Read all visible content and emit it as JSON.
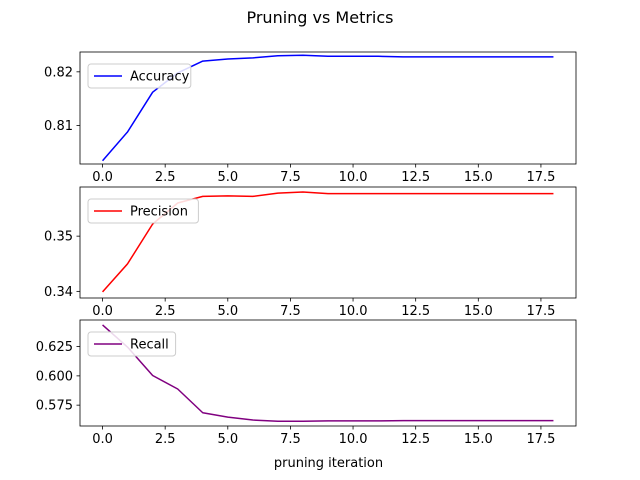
{
  "figure": {
    "title": "Pruning vs Metrics",
    "xlabel": "pruning iteration"
  },
  "chart_data": [
    {
      "type": "line",
      "x": [
        0,
        1,
        2,
        3,
        4,
        5,
        6,
        7,
        8,
        9,
        10,
        11,
        12,
        13,
        14,
        15,
        16,
        17,
        18
      ],
      "series": [
        {
          "name": "Accuracy",
          "color": "#0000ff",
          "values": [
            0.8034,
            0.8088,
            0.8162,
            0.8198,
            0.822,
            0.8224,
            0.8226,
            0.823,
            0.8231,
            0.8229,
            0.8229,
            0.8229,
            0.8228,
            0.8228,
            0.8228,
            0.8228,
            0.8228,
            0.8228,
            0.8228
          ]
        }
      ],
      "xlim": [
        -0.9,
        18.9
      ],
      "ylim": [
        0.8028,
        0.8237
      ],
      "xticks": [
        0,
        2.5,
        5,
        7.5,
        10,
        12.5,
        15,
        17.5
      ],
      "xtick_labels": [
        "0.0",
        "2.5",
        "5.0",
        "7.5",
        "10.0",
        "12.5",
        "15.0",
        "17.5"
      ],
      "yticks": [
        0.81,
        0.82
      ],
      "ytick_labels": [
        "0.81",
        "0.82"
      ],
      "legend": "upper left",
      "grid": false
    },
    {
      "type": "line",
      "x": [
        0,
        1,
        2,
        3,
        4,
        5,
        6,
        7,
        8,
        9,
        10,
        11,
        12,
        13,
        14,
        15,
        16,
        17,
        18
      ],
      "series": [
        {
          "name": "Precision",
          "color": "#ff0000",
          "values": [
            0.3399,
            0.345,
            0.3522,
            0.356,
            0.3572,
            0.3573,
            0.3572,
            0.3578,
            0.358,
            0.3577,
            0.3577,
            0.3577,
            0.3577,
            0.3577,
            0.3577,
            0.3577,
            0.3577,
            0.3577,
            0.3577
          ]
        }
      ],
      "xlim": [
        -0.9,
        18.9
      ],
      "ylim": [
        0.3388,
        0.3589
      ],
      "xticks": [
        0,
        2.5,
        5,
        7.5,
        10,
        12.5,
        15,
        17.5
      ],
      "xtick_labels": [
        "0.0",
        "2.5",
        "5.0",
        "7.5",
        "10.0",
        "12.5",
        "15.0",
        "17.5"
      ],
      "yticks": [
        0.34,
        0.35
      ],
      "ytick_labels": [
        "0.34",
        "0.35"
      ],
      "legend": "upper left",
      "grid": false
    },
    {
      "type": "line",
      "x": [
        0,
        1,
        2,
        3,
        4,
        5,
        6,
        7,
        8,
        9,
        10,
        11,
        12,
        13,
        14,
        15,
        16,
        17,
        18
      ],
      "series": [
        {
          "name": "Recall",
          "color": "#800080",
          "values": [
            0.6435,
            0.6245,
            0.6003,
            0.5888,
            0.5685,
            0.5648,
            0.5623,
            0.5613,
            0.5613,
            0.5616,
            0.5616,
            0.5616,
            0.5618,
            0.5618,
            0.5618,
            0.5618,
            0.5618,
            0.5618,
            0.5618
          ]
        }
      ],
      "xlim": [
        -0.9,
        18.9
      ],
      "ylim": [
        0.5572,
        0.6477
      ],
      "xticks": [
        0,
        2.5,
        5,
        7.5,
        10,
        12.5,
        15,
        17.5
      ],
      "xtick_labels": [
        "0.0",
        "2.5",
        "5.0",
        "7.5",
        "10.0",
        "12.5",
        "15.0",
        "17.5"
      ],
      "yticks": [
        0.575,
        0.6,
        0.625
      ],
      "ytick_labels": [
        "0.575",
        "0.600",
        "0.625"
      ],
      "legend": "upper left",
      "grid": false
    }
  ]
}
